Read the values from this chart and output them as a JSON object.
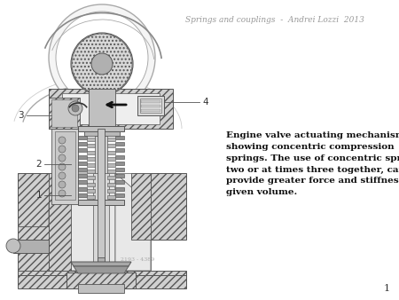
{
  "title": "Springs and couplings  -  Andrei Lozzi  2013",
  "title_fontsize": 6.5,
  "title_color": "#999999",
  "page_number": "1",
  "description_text": "Engine valve actuating mechanism,\nshowing concentric compression\nsprings. The use of concentric springs,\ntwo or at times three together, can\nprovide greater force and stiffness in a\ngiven volume.",
  "description_fontsize": 7.5,
  "bg_color": "#ffffff",
  "watermark": "2193 - 4389",
  "ec": "#555555",
  "hatch_fc": "#d0d0d0",
  "light_fc": "#eeeeee",
  "mid_fc": "#c0c0c0"
}
